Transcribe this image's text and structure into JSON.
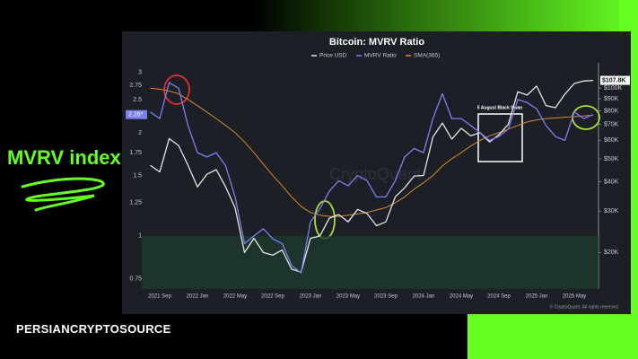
{
  "side_title": "MVRV index",
  "brand": "PERSIANCRYPTOSOURCE",
  "chart_data": {
    "type": "line",
    "title": "Bitcoin: MVRV Ratio",
    "watermark": "CryptoQuant",
    "copyright": "© CryptoQuant. All rights reserved.",
    "annotation": "5 August Black Swan",
    "categories": [
      null,
      "2021 Sep",
      null,
      null,
      null,
      "2022 Jan",
      null,
      null,
      null,
      "2022 May",
      null,
      null,
      null,
      "2022 Sep",
      null,
      null,
      null,
      "2023 Jan",
      null,
      null,
      null,
      "2023 May",
      null,
      null,
      null,
      "2023 Sep",
      null,
      null,
      null,
      "2024 Jan",
      null,
      null,
      null,
      "2024 May",
      null,
      null,
      null,
      "2024 Sep",
      null,
      null,
      null,
      "2025 Jan",
      null,
      null,
      null,
      "2025 May",
      null,
      null
    ],
    "series": [
      {
        "name": "Price USD",
        "color": "#e6e6e6",
        "axis": "y2",
        "values": [
          47000,
          44000,
          61000,
          57000,
          47000,
          38000,
          43000,
          45000,
          38000,
          31000,
          20000,
          23000,
          20000,
          19500,
          20500,
          17000,
          16500,
          23000,
          23500,
          28000,
          29000,
          27000,
          30500,
          29300,
          26000,
          27000,
          34500,
          37700,
          42300,
          42500,
          62000,
          71000,
          60600,
          67500,
          62700,
          64600,
          59000,
          63300,
          70200,
          96400,
          93400,
          102000,
          84300,
          82500,
          94200,
          104600,
          107100,
          107800
        ],
        "value_labels": [
          null,
          null,
          null,
          null,
          null,
          null,
          null,
          null,
          null,
          null,
          null,
          null,
          null,
          null,
          null,
          null,
          null,
          null,
          null,
          null,
          null,
          null,
          null,
          null,
          null,
          null,
          null,
          null,
          null,
          null,
          null,
          null,
          null,
          null,
          null,
          null,
          null,
          null,
          null,
          null,
          null,
          null,
          null,
          null,
          null,
          null,
          null,
          "$107.8K"
        ]
      },
      {
        "name": "MVRV Ratio",
        "color": "#7b7ff0",
        "values": [
          2.3,
          2.2,
          2.8,
          2.7,
          2.1,
          1.75,
          1.7,
          1.75,
          1.6,
          1.3,
          0.95,
          1.0,
          1.05,
          0.98,
          0.95,
          0.82,
          0.78,
          1.1,
          1.2,
          1.35,
          1.45,
          1.4,
          1.5,
          1.45,
          1.3,
          1.3,
          1.45,
          1.7,
          1.8,
          1.75,
          2.2,
          2.6,
          2.2,
          2.2,
          2.1,
          2.0,
          1.9,
          1.95,
          2.05,
          2.5,
          2.45,
          2.35,
          2.1,
          1.95,
          1.9,
          2.3,
          2.2,
          2.26
        ],
        "value_labels": [
          null,
          null,
          null,
          null,
          null,
          null,
          null,
          null,
          null,
          null,
          null,
          null,
          null,
          null,
          null,
          null,
          null,
          null,
          null,
          null,
          null,
          null,
          null,
          null,
          null,
          null,
          null,
          null,
          null,
          null,
          null,
          null,
          null,
          null,
          null,
          null,
          null,
          null,
          null,
          null,
          null,
          null,
          null,
          null,
          null,
          null,
          null,
          "2.26*"
        ]
      },
      {
        "name": "SMA(365)",
        "color": "#d98a2b",
        "values": [
          2.7,
          2.68,
          2.65,
          2.6,
          2.5,
          2.4,
          2.3,
          2.2,
          2.1,
          2.0,
          1.88,
          1.75,
          1.62,
          1.5,
          1.4,
          1.3,
          1.22,
          1.17,
          1.15,
          1.14,
          1.14,
          1.15,
          1.16,
          1.17,
          1.19,
          1.21,
          1.25,
          1.3,
          1.37,
          1.43,
          1.5,
          1.6,
          1.68,
          1.75,
          1.83,
          1.9,
          1.96,
          2.0,
          2.05,
          2.1,
          2.15,
          2.18,
          2.2,
          2.21,
          2.22,
          2.23,
          2.24,
          2.25
        ]
      }
    ],
    "undervalued_band": [
      0.7,
      1
    ],
    "band_color": "#1e3a2c",
    "ylim": [
      0.7,
      3.2
    ],
    "yticks": [
      0.75,
      1,
      1.25,
      1.5,
      1.75,
      2,
      2.5,
      2.75,
      3
    ],
    "log_scale": true,
    "y2lim": [
      14000,
      128000
    ],
    "y2ticks": [
      {
        "value": 20000,
        "label": "$20K"
      },
      {
        "value": 30000,
        "label": "$30K"
      },
      {
        "value": 40000,
        "label": "$40K"
      },
      {
        "value": 50000,
        "label": "$50K"
      },
      {
        "value": 60000,
        "label": "$60K"
      },
      {
        "value": 70000,
        "label": "$70K"
      },
      {
        "value": 80000,
        "label": "$80K"
      },
      {
        "value": 90000,
        "label": "$90K"
      },
      {
        "value": 100000,
        "label": "$100K"
      }
    ],
    "grid": false
  }
}
